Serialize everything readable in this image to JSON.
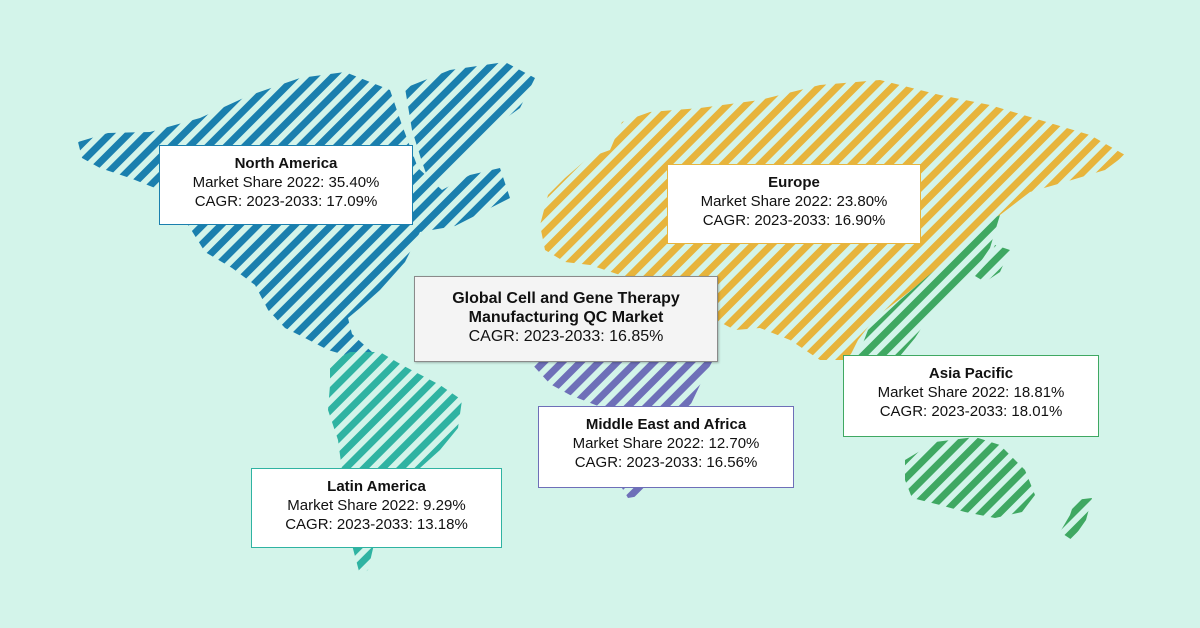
{
  "colors": {
    "background": "#d3f4ea",
    "north_america": "#1a7fae",
    "europe": "#e7b43c",
    "asia_pacific": "#3fa862",
    "middle_east_africa": "#6e6fb8",
    "latin_america": "#2fb3a2"
  },
  "summary": {
    "title_line1": "Global Cell and Gene Therapy",
    "title_line2": "Manufacturing QC Market",
    "cagr": "CAGR: 2023-2033: 16.85%"
  },
  "regions": {
    "north_america": {
      "name": "North America",
      "share": "Market Share 2022: 35.40%",
      "cagr": "CAGR: 2023-2033: 17.09%"
    },
    "europe": {
      "name": "Europe",
      "share": "Market Share 2022: 23.80%",
      "cagr": "CAGR: 2023-2033: 16.90%"
    },
    "asia_pacific": {
      "name": "Asia Pacific",
      "share": "Market Share 2022: 18.81%",
      "cagr": "CAGR: 2023-2033: 18.01%"
    },
    "middle_east_africa": {
      "name": "Middle East and Africa",
      "share": "Market Share 2022: 12.70%",
      "cagr": "CAGR: 2023-2033: 16.56%"
    },
    "latin_america": {
      "name": "Latin America",
      "share": "Market Share 2022: 9.29%",
      "cagr": "CAGR: 2023-2033: 13.18%"
    }
  }
}
